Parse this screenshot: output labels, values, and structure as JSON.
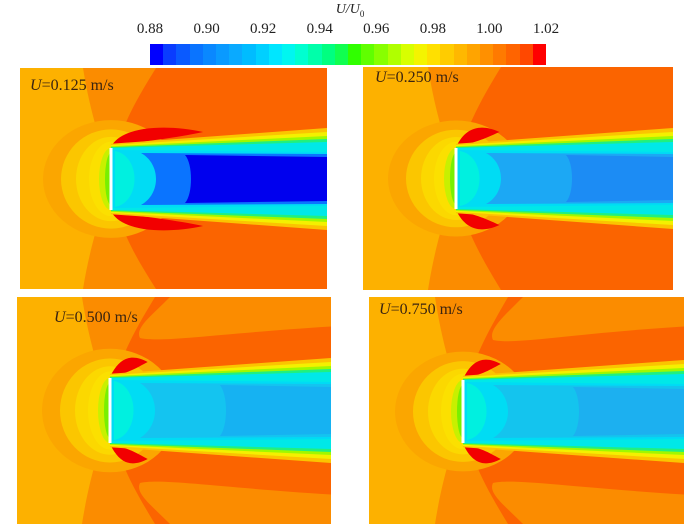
{
  "chart_data": {
    "type": "heatmap",
    "title": "U/U0",
    "colorbar": {
      "label_var": "U/U",
      "label_sub": "0",
      "ticks": [
        "0.88",
        "0.90",
        "0.92",
        "0.94",
        "0.96",
        "0.98",
        "1.00",
        "1.02"
      ],
      "range": [
        0.88,
        1.02
      ],
      "colors": [
        "#0000ff",
        "#0a3cff",
        "#0a5aff",
        "#0a74ff",
        "#0a88ff",
        "#0a9aff",
        "#0aaaff",
        "#00bcff",
        "#00d0ff",
        "#00e6ff",
        "#00f6f0",
        "#00ffd0",
        "#00ffaa",
        "#00ff80",
        "#10ff50",
        "#30ff00",
        "#60ff00",
        "#88ff00",
        "#b0ff00",
        "#d8ff00",
        "#f4f400",
        "#ffe000",
        "#ffcc00",
        "#ffb800",
        "#ffa400",
        "#ff9000",
        "#ff7a00",
        "#ff6400",
        "#ff4800",
        "#ff0000"
      ]
    },
    "panels": [
      {
        "id": "p1",
        "velocity_label": "U",
        "velocity_value": "=0.125 m/s",
        "wake_min": 0.88,
        "wake_core_color": "#0000ee",
        "wake_mid_color": "#0a74ff",
        "red_lobe_length": 0.3
      },
      {
        "id": "p2",
        "velocity_label": "U",
        "velocity_value": "=0.250 m/s",
        "wake_min": 0.905,
        "wake_core_color": "#1c8cf4",
        "wake_mid_color": "#1ca8f4",
        "red_lobe_length": 0.14
      },
      {
        "id": "p3",
        "velocity_label": "U",
        "velocity_value": "=0.500 m/s",
        "wake_min": 0.91,
        "wake_core_color": "#16b2f2",
        "wake_mid_color": "#14c4f0",
        "red_lobe_length": 0.12
      },
      {
        "id": "p4",
        "velocity_label": "U",
        "velocity_value": "=0.750 m/s",
        "wake_min": 0.91,
        "wake_core_color": "#1cb0f0",
        "wake_mid_color": "#14c4ee",
        "red_lobe_length": 0.12
      }
    ],
    "colors": {
      "freestream_far": "#fdb100",
      "freestream_up": "#fba600",
      "mid_orange": "#fb8c00",
      "dark_orange": "#fb6400",
      "red": "#f20000",
      "plate": "#ffffff",
      "upstream_yellow": "#fbe000",
      "upstream_light": "#fbc600",
      "upstream_green": "#78f000"
    }
  }
}
